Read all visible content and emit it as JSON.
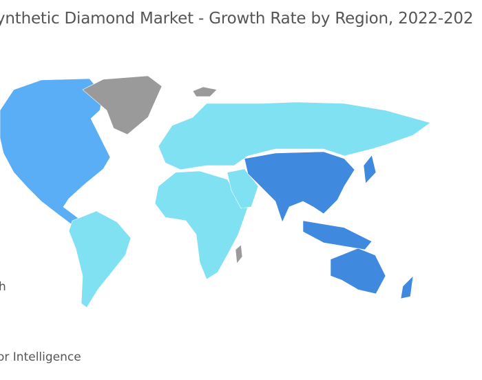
{
  "title": "ynthetic Diamond  Market - Growth Rate by Region, 2022-202",
  "legend": [
    "h"
  ],
  "source": "or Intelligence",
  "regions": [
    {
      "color": "#5aaef6"
    },
    {
      "color": "#9a9a9a"
    },
    {
      "color": "#7fe1f1"
    },
    {
      "color": "#3f89df"
    }
  ]
}
